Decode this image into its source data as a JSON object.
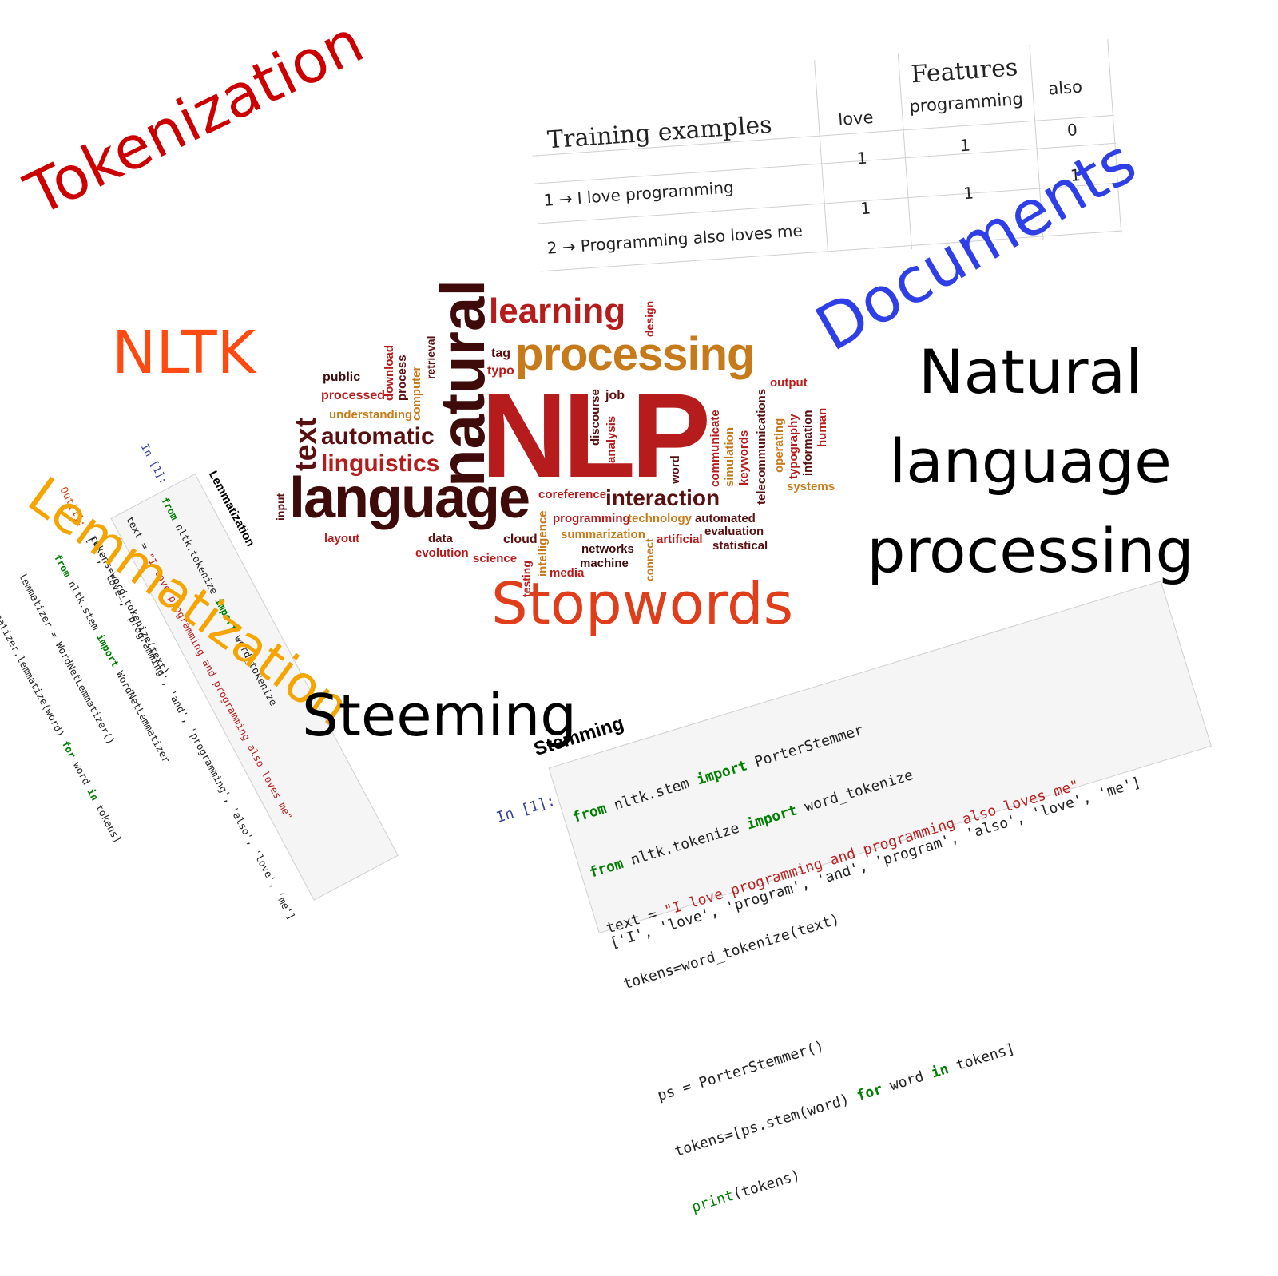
{
  "labels": {
    "tokenization": "Tokenization",
    "nltk": "NLTK",
    "lemmatization": "Lemmatization",
    "stopwords": "Stopwords",
    "steeming": "Steeming",
    "documents": "Documents",
    "nlp_line1": "Natural",
    "nlp_line2": "language",
    "nlp_line3": "processing"
  },
  "colors": {
    "tokenization": "#cc0000",
    "nltk": "#ff4a12",
    "lemmatization": "#f5a400",
    "stopwords": "#e03e1a",
    "documents": "#2f3fe8",
    "cloud_dark": "#5a1010",
    "cloud_red": "#b71c1c",
    "cloud_orange": "#c77a1a",
    "cloud_brown": "#8b3a1a"
  },
  "table": {
    "features_header": "Features",
    "examples_header": "Training examples",
    "columns": [
      "love",
      "programming",
      "also"
    ],
    "rows": [
      {
        "label": "1 → I love programming",
        "values": [
          "1",
          "1",
          "0"
        ]
      },
      {
        "label": "2 → Programming also loves me",
        "values": [
          "1",
          "1",
          "1"
        ]
      }
    ]
  },
  "word_cloud": {
    "nlp": "NLP",
    "natural": "natural",
    "language": "language",
    "processing": "processing",
    "learning": "learning",
    "text": "text",
    "automatic": "automatic",
    "linguistics": "linguistics",
    "interaction": "interaction",
    "understanding": "understanding",
    "processed": "processed",
    "public": "public",
    "tag": "tag",
    "typo": "typo",
    "job": "job",
    "design": "design",
    "output": "output",
    "download": "download",
    "process": "process",
    "computer": "computer",
    "retrieval": "retrieval",
    "discourse": "discourse",
    "analysis": "analysis",
    "word": "word",
    "communicate": "communicate",
    "simulation": "simulation",
    "keywords": "keywords",
    "telecommunications": "telecommunications",
    "operating": "operating",
    "typography": "typography",
    "information": "information",
    "human": "human",
    "systems": "systems",
    "input": "input",
    "layout": "layout",
    "data": "data",
    "evolution": "evolution",
    "cloud": "cloud",
    "science": "science",
    "coreference": "coreference",
    "programming": "programming",
    "technology": "technology",
    "automated": "automated",
    "summarization": "summarization",
    "artificial": "artificial",
    "evaluation": "evaluation",
    "statistical": "statistical",
    "networks": "networks",
    "machine": "machine",
    "connect": "connect",
    "intelligence": "intelligence",
    "testing": "testing",
    "media": "media"
  },
  "lemma_code": {
    "title": "Lemmatization",
    "prompt": "In [1]:",
    "out_prompt": "Out[1]:",
    "line1_kw1": "from",
    "line1_mod": " nltk.tokenize ",
    "line1_kw2": "import",
    "line1_rest": " word_tokenize",
    "line2_pre": "text = ",
    "line2_str": "\"I love programming and programming also loves me\"",
    "line3": "tokens=word_tokenize(text)",
    "line4_kw1": "from",
    "line4_mod": " nltk.stem ",
    "line4_kw2": "import",
    "line4_rest": " WordNetLemmatizer",
    "line5": "lemmatizer = WordNetLemmatizer()",
    "line6_pre": "[lemmatizer.lemmatize(word) ",
    "line6_kw1": "for",
    "line6_mid": " word ",
    "line6_kw2": "in",
    "line6_rest": " tokens]",
    "output": "['I', 'love', 'programming', 'and', 'programming', 'also', 'love', 'me']"
  },
  "stem_code": {
    "title": "Stemming",
    "prompt": "In [1]:",
    "line1_kw1": "from",
    "line1_mod": " nltk.stem ",
    "line1_kw2": "import",
    "line1_rest": " PorterStemmer",
    "line2_kw1": "from",
    "line2_mod": " nltk.tokenize ",
    "line2_kw2": "import",
    "line2_rest": " word_tokenize",
    "line3_pre": "text = ",
    "line3_str": "\"I love programming and programming also loves me\"",
    "line4": "tokens=word_tokenize(text)",
    "line5": "ps = PorterStemmer()",
    "line6_pre": "tokens=[ps.stem(word) ",
    "line6_kw1": "for",
    "line6_mid": " word ",
    "line6_kw2": "in",
    "line6_rest": " tokens]",
    "line7_fn": "print",
    "line7_rest": "(tokens)",
    "output": "['I', 'love', 'program', 'and', 'program', 'also', 'love', 'me']"
  }
}
